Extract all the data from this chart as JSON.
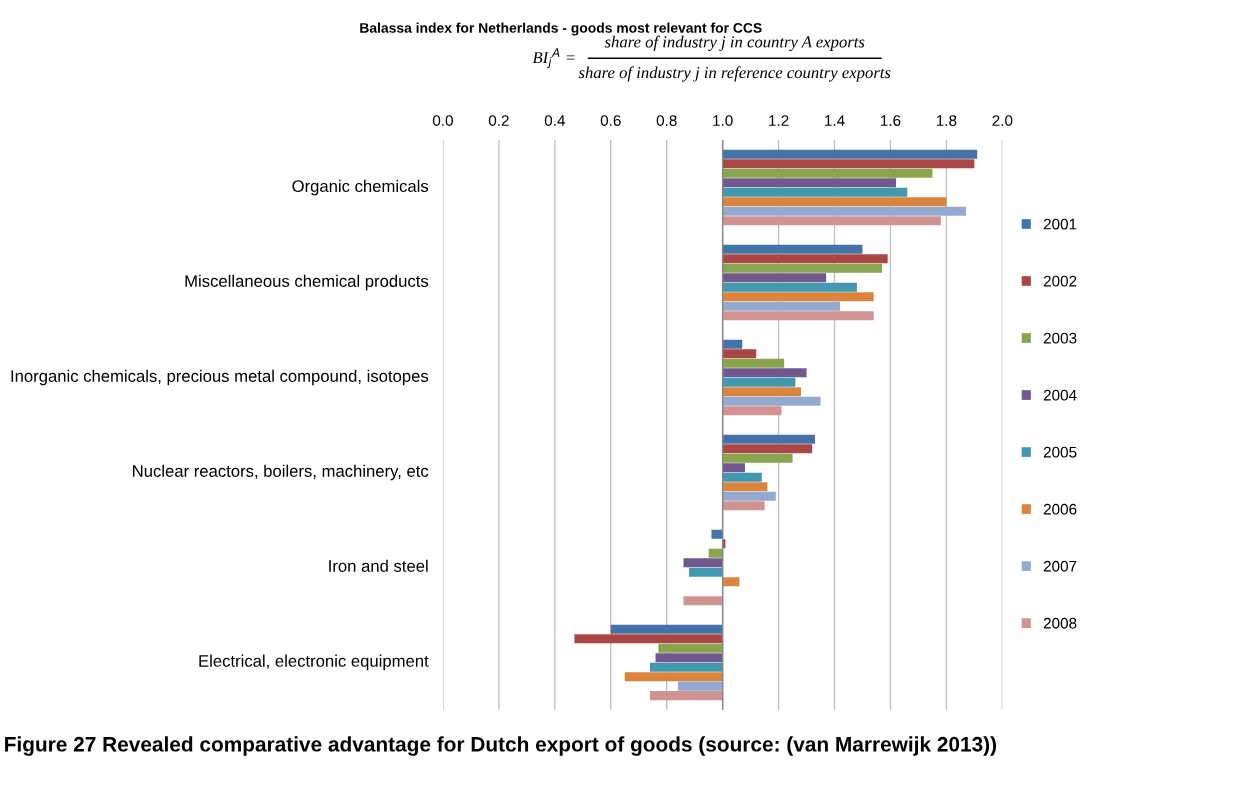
{
  "chart_data": {
    "type": "bar",
    "orientation": "horizontal",
    "title": "Balassa index for Netherlands - goods most relevant for CCS",
    "subtitle": "BI$_{j}$$^{A}$ =",
    "annotations": [
      "share of industry j in country A exports",
      "share of industry j in reference country exports",
      "Figure 27 Revealed comparative advantage for Dutch export of goods (source: (van Marrewijk 2013))"
    ],
    "categories": [
      "Organic chemicals",
      "Miscellaneous chemical products",
      "Inorganic chemicals, precious metal compound, isotopes",
      "Nuclear reactors, boilers, machinery, etc",
      "Iron and steel",
      "Electrical, electronic equipment"
    ],
    "ref_lines": [
      {
        "axis": "x",
        "value": 1.0,
        "color": "#888888"
      }
    ],
    "series": [
      {
        "name": "2001",
        "color": "#4572a7",
        "base": [
          1.0,
          1.0,
          1.0,
          1.0,
          1.0,
          1.0
        ],
        "values": [
          0.91,
          0.5,
          0.07,
          0.33,
          -0.04,
          -0.4
        ]
      },
      {
        "name": "2002",
        "color": "#aa4643",
        "base": [
          1.0,
          1.0,
          1.0,
          1.0,
          1.0,
          1.0
        ],
        "values": [
          0.9,
          0.59,
          0.12,
          0.32,
          0.01,
          -0.53
        ]
      },
      {
        "name": "2003",
        "color": "#89a54e",
        "base": [
          1.0,
          1.0,
          1.0,
          1.0,
          1.0,
          1.0
        ],
        "values": [
          0.75,
          0.57,
          0.22,
          0.25,
          -0.05,
          -0.23
        ]
      },
      {
        "name": "2004",
        "color": "#71588f",
        "base": [
          1.0,
          1.0,
          1.0,
          1.0,
          1.0,
          1.0
        ],
        "values": [
          0.62,
          0.37,
          0.3,
          0.08,
          -0.14,
          -0.24
        ]
      },
      {
        "name": "2005",
        "color": "#4198af",
        "base": [
          1.0,
          1.0,
          1.0,
          1.0,
          1.0,
          1.0
        ],
        "values": [
          0.66,
          0.48,
          0.26,
          0.14,
          -0.12,
          -0.26
        ]
      },
      {
        "name": "2006",
        "color": "#db843d",
        "base": [
          1.0,
          1.0,
          1.0,
          1.0,
          1.0,
          1.0
        ],
        "values": [
          0.8,
          0.54,
          0.28,
          0.16,
          0.06,
          -0.35
        ]
      },
      {
        "name": "2007",
        "color": "#93a9cf",
        "base": [
          1.0,
          1.0,
          1.0,
          1.0,
          null,
          1.0
        ],
        "values": [
          0.87,
          0.42,
          0.35,
          0.19,
          null,
          -0.16
        ]
      },
      {
        "name": "2008",
        "color": "#d19392",
        "base": [
          1.0,
          1.0,
          1.0,
          1.0,
          1.0,
          1.0
        ],
        "values": [
          0.78,
          0.54,
          0.21,
          0.15,
          -0.14,
          -0.26
        ]
      }
    ],
    "xlim": [
      0.0,
      2.0
    ],
    "xticks": [
      {
        "value": 0.0,
        "label": "0.0"
      },
      {
        "value": 0.2,
        "label": "0.2"
      },
      {
        "value": 0.4,
        "label": "0.4"
      },
      {
        "value": 0.6,
        "label": "0.6"
      },
      {
        "value": 0.8,
        "label": "0.8"
      },
      {
        "value": 1.0,
        "label": "1.0"
      },
      {
        "value": 1.2,
        "label": "1.2"
      },
      {
        "value": 1.4,
        "label": "1.4"
      },
      {
        "value": 1.6,
        "label": "1.6"
      },
      {
        "value": 1.8,
        "label": "1.8"
      },
      {
        "value": 2.0,
        "label": "2.0"
      }
    ],
    "grid": "x",
    "legend": "right"
  }
}
